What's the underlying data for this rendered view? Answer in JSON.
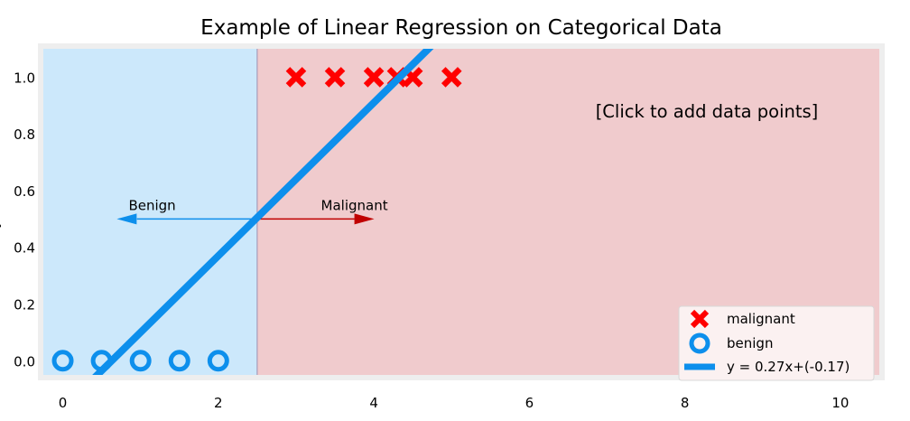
{
  "chart_data": {
    "type": "scatter",
    "title": "Example of Linear Regression on Categorical Data",
    "xlabel": "",
    "ylabel": "y",
    "xlim": [
      -0.25,
      10.5
    ],
    "ylim": [
      -0.05,
      1.1
    ],
    "xticks": [
      0,
      2,
      4,
      6,
      8,
      10
    ],
    "yticks": [
      0.0,
      0.2,
      0.4,
      0.6,
      0.8,
      1.0
    ],
    "grid": false,
    "legend_position": "lower-right",
    "threshold_x": 2.5,
    "regions": {
      "left_color": "#cce8fb",
      "right_color": "#f0cbcd"
    },
    "series": [
      {
        "name": "malignant",
        "marker": "x",
        "color": "#ff0000",
        "x": [
          3.0,
          3.5,
          4.0,
          4.3,
          4.5,
          5.0
        ],
        "y": [
          1,
          1,
          1,
          1,
          1,
          1
        ]
      },
      {
        "name": "benign",
        "marker": "o",
        "color": "#0d8fec",
        "x": [
          0.0,
          0.5,
          1.0,
          1.5,
          2.0
        ],
        "y": [
          0,
          0,
          0,
          0,
          0
        ]
      }
    ],
    "fit_line": {
      "name": "y = 0.27x+(-0.17)",
      "slope": 0.27,
      "intercept": -0.17,
      "color": "#0d8fec"
    },
    "annotations": {
      "benign_label": "Benign",
      "malignant_label": "Malignant",
      "click_hint": "[Click to add data points]"
    }
  }
}
